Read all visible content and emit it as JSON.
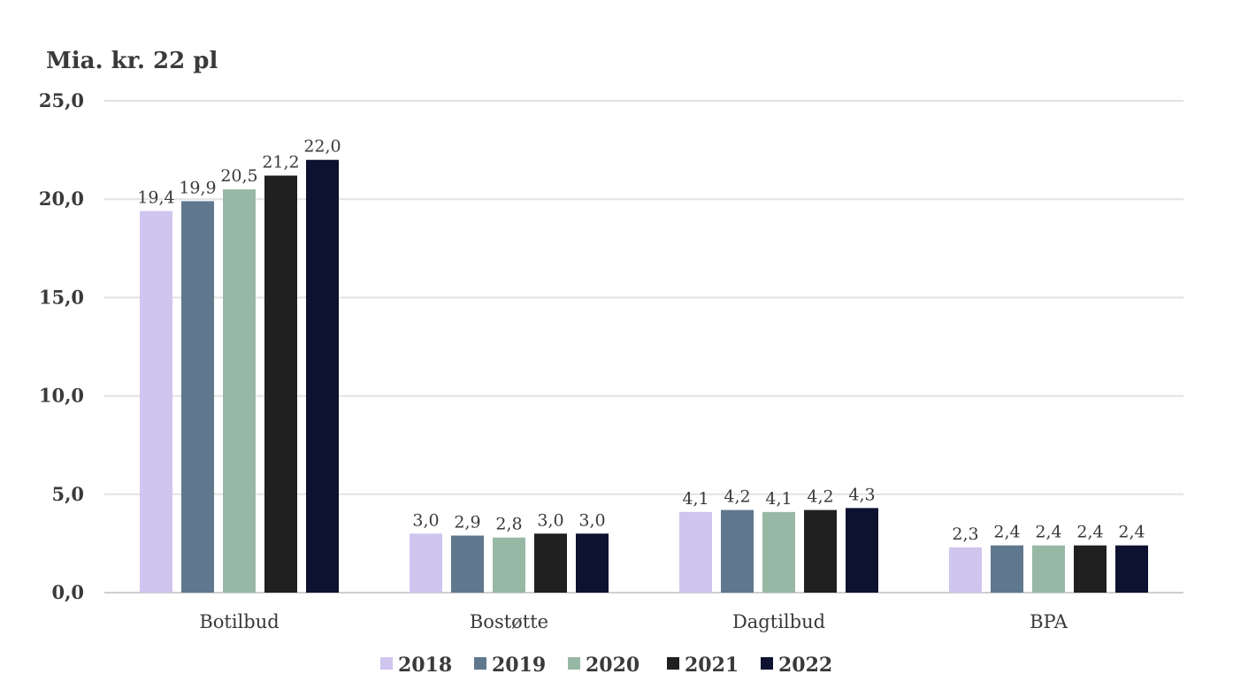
{
  "chart_data": {
    "type": "bar",
    "ylabel": "Mia. kr. 22 pl",
    "ylim": [
      0,
      25
    ],
    "yticks": [
      "0,0",
      "5,0",
      "10,0",
      "15,0",
      "20,0",
      "25,0"
    ],
    "categories": [
      "Botilbud",
      "Bostøtte",
      "Dagtilbud",
      "BPA"
    ],
    "series": [
      {
        "name": "2018",
        "color": "#d0c5ee",
        "values": [
          19.4,
          3.0,
          4.1,
          2.3
        ],
        "labels": [
          "19,4",
          "3,0",
          "4,1",
          "2,3"
        ]
      },
      {
        "name": "2019",
        "color": "#5f788e",
        "values": [
          19.9,
          2.9,
          4.2,
          2.4
        ],
        "labels": [
          "19,9",
          "2,9",
          "4,2",
          "2,4"
        ]
      },
      {
        "name": "2020",
        "color": "#98b8a6",
        "values": [
          20.5,
          2.8,
          4.1,
          2.4
        ],
        "labels": [
          "20,5",
          "2,8",
          "4,1",
          "2,4"
        ]
      },
      {
        "name": "2021",
        "color": "#202020",
        "values": [
          21.2,
          3.0,
          4.2,
          2.4
        ],
        "labels": [
          "21,2",
          "3,0",
          "4,2",
          "2,4"
        ]
      },
      {
        "name": "2022",
        "color": "#0c1230",
        "values": [
          22.0,
          3.0,
          4.3,
          2.4
        ],
        "labels": [
          "22,0",
          "3,0",
          "4,3",
          "2,4"
        ]
      }
    ],
    "grid": true,
    "legend": "bottom"
  }
}
